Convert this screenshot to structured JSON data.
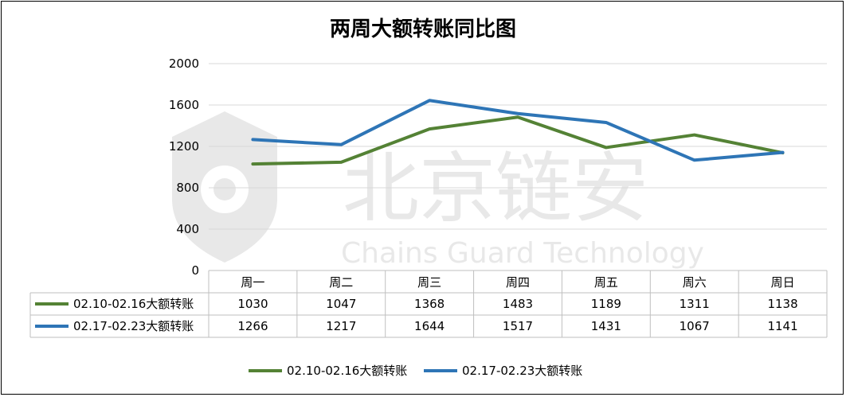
{
  "title": "两周大额转账同比图",
  "watermark": {
    "main": "北京链安",
    "sub": "Chains Guard Technology"
  },
  "chart_data": {
    "type": "line",
    "title": "两周大额转账同比图",
    "categories": [
      "周一",
      "周二",
      "周三",
      "周四",
      "周五",
      "周六",
      "周日"
    ],
    "series": [
      {
        "name": "02.10-02.16大额转账",
        "color": "#548235",
        "values": [
          1030,
          1047,
          1368,
          1483,
          1189,
          1311,
          1138
        ]
      },
      {
        "name": "02.17-02.23大额转账",
        "color": "#2e75b6",
        "values": [
          1266,
          1217,
          1644,
          1517,
          1431,
          1067,
          1141
        ]
      }
    ],
    "ylim": [
      0,
      2000
    ],
    "yticks": [
      0,
      400,
      800,
      1200,
      1600,
      2000
    ],
    "grid": true,
    "data_table": true,
    "legend_position": "bottom"
  }
}
